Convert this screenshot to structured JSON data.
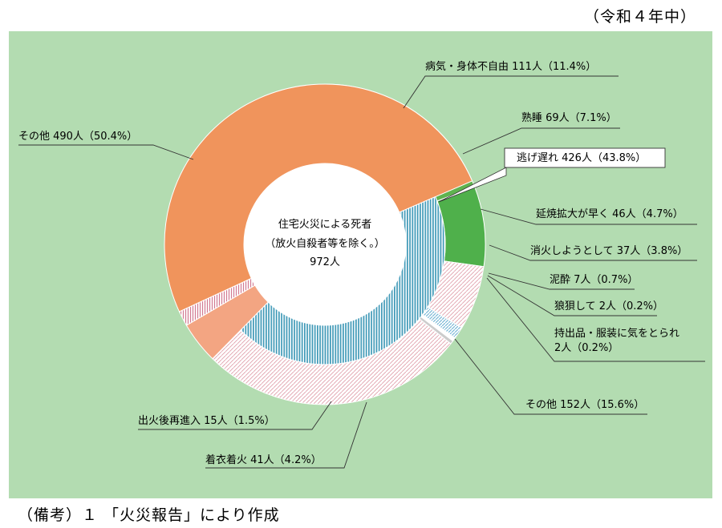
{
  "period": "（令和４年中）",
  "note": "（備考）１ 「火災報告」により作成",
  "chart_data": {
    "type": "pie",
    "center_label": [
      "住宅火災による死者",
      "（放火自殺者等を除く。）",
      "972人"
    ],
    "total": 972,
    "outer_ring": [
      {
        "label": "病気・身体不自由 111人（11.4%）",
        "value": 111,
        "color": "#f4b43a",
        "pattern": "solid"
      },
      {
        "label": "熟睡 69人（7.1%）",
        "value": 69,
        "color": "#e07a80",
        "pattern": "dots"
      },
      {
        "label": "逃げ遅れ 426人（43.8%）",
        "value": 426,
        "color": "#5fb34f",
        "pattern": "solid",
        "boxed": true
      },
      {
        "label": "延焼拡大が早く 46人（4.7%）",
        "value": 46,
        "color": "#4fb04b",
        "pattern": "solid"
      },
      {
        "label": "消火しようとして 37人（3.8%）",
        "value": 37,
        "color": "#f1d88a",
        "pattern": "dots"
      },
      {
        "label": "泥酔 7人（0.7%）",
        "value": 7,
        "color": "#9ccfe6",
        "pattern": "stripes"
      },
      {
        "label": "狼狽して 2人（0.2%）",
        "value": 2,
        "color": "#ffffff",
        "pattern": "solid"
      },
      {
        "label": "持出品・服装に気をとられ|2人（0.2%）",
        "value": 2,
        "color": "#cccccc",
        "pattern": "solid"
      },
      {
        "label": "その他 152人（15.6%）",
        "value": 152,
        "color": "#e8a7b0",
        "pattern": "dots"
      },
      {
        "label": "着衣着火 41人（4.2%）",
        "value": 41,
        "color": "#f3a582",
        "pattern": "solid"
      },
      {
        "label": "出火後再進入 15人（1.5%）",
        "value": 15,
        "color": "#e7a0b0",
        "pattern": "stripes"
      },
      {
        "label": "その他 490人（50.4%）",
        "value": 490,
        "color": "#f0945c",
        "pattern": "solid"
      }
    ],
    "inner_ring": [
      {
        "name": "逃げ遅れ",
        "value": 426,
        "color": "#58a9c4",
        "pattern": "vstripes"
      }
    ]
  }
}
